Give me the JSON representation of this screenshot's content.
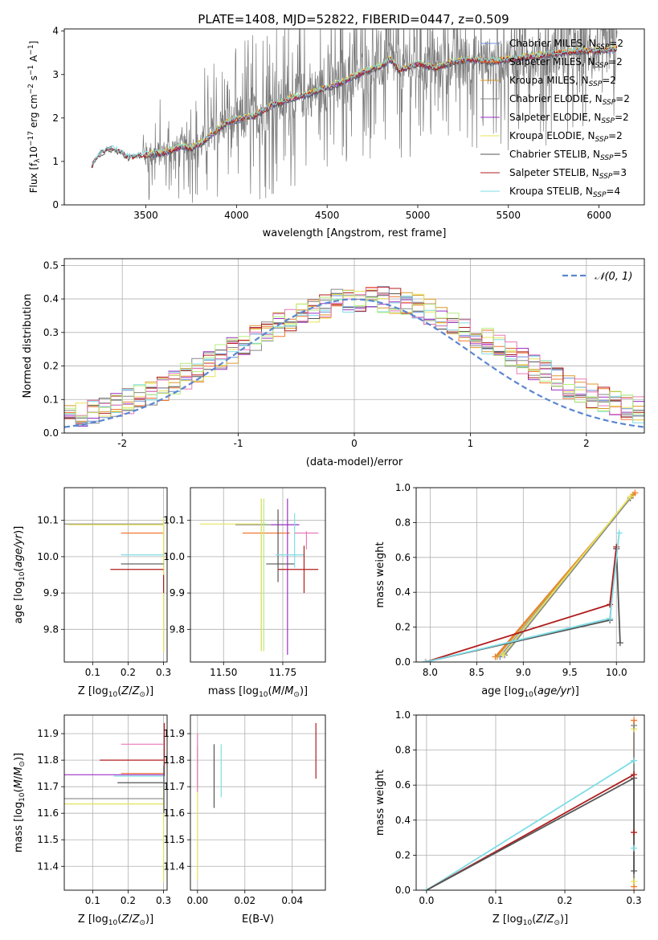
{
  "figure": {
    "title": "PLATE=1408, MJD=52822, FIBERID=0447, z=0.509"
  },
  "colors": {
    "Chabrier MILES": "#6b8dd6",
    "Salpeter MILES": "#f0762e",
    "Kroupa MILES": "#d99a2b",
    "Chabrier ELODIE": "#888888",
    "Salpeter ELODIE": "#9b30c4",
    "Kroupa ELODIE": "#e6e35a",
    "Chabrier STELIB": "#555555",
    "Salpeter STELIB": "#b01c1c",
    "Kroupa STELIB": "#7fdde6",
    "extra_pink": "#e879b8",
    "extra_green": "#b6ee7a",
    "data_gray": "#7a7a7a",
    "normal_curve": "#5b86d1",
    "grid": "#b0b0b0"
  },
  "legend_spectrum": [
    {
      "name": "Chabrier MILES",
      "base": "N",
      "sub": "SSP",
      "val": "=2"
    },
    {
      "name": "Salpeter MILES",
      "base": "N",
      "sub": "SSP",
      "val": "=2"
    },
    {
      "name": "Kroupa MILES",
      "base": "N",
      "sub": "SSP",
      "val": "=2"
    },
    {
      "name": "Chabrier ELODIE",
      "base": "N",
      "sub": "SSP",
      "val": "=2"
    },
    {
      "name": "Salpeter ELODIE",
      "base": "N",
      "sub": "SSP",
      "val": "=2"
    },
    {
      "name": "Kroupa ELODIE",
      "base": "N",
      "sub": "SSP",
      "val": "=2"
    },
    {
      "name": "Chabrier STELIB",
      "base": "N",
      "sub": "SSP",
      "val": "=5"
    },
    {
      "name": "Salpeter STELIB",
      "base": "N",
      "sub": "SSP",
      "val": "=3"
    },
    {
      "name": "Kroupa STELIB",
      "base": "N",
      "sub": "SSP",
      "val": "=4"
    }
  ],
  "chart_data": [
    {
      "id": "spectrum",
      "type": "line",
      "title": "PLATE=1408, MJD=52822, FIBERID=0447, z=0.509",
      "xlabel": "wavelength [Angstrom, rest frame]",
      "ylabel": "Flux [f_λ 10^-17 erg cm^-2 s^-1 A^-1]",
      "xlim": [
        3050,
        6250
      ],
      "ylim": [
        0,
        4.05
      ],
      "xticks": [
        3500,
        4000,
        4500,
        5000,
        5500,
        6000
      ],
      "yticks": [
        0,
        1,
        2,
        3,
        4
      ],
      "grid": false,
      "legend_position": "top-right",
      "model_continuum": {
        "x": [
          3200,
          3250,
          3300,
          3350,
          3400,
          3500,
          3600,
          3700,
          3750,
          3800,
          3900,
          3950,
          4000,
          4100,
          4200,
          4300,
          4400,
          4500,
          4600,
          4700,
          4800,
          4850,
          4900,
          5000,
          5100,
          5200,
          5300,
          5400,
          5500,
          5600,
          5700,
          5800,
          5900,
          6000,
          6100
        ],
        "y": [
          0.9,
          1.2,
          1.3,
          1.25,
          1.1,
          1.15,
          1.2,
          1.35,
          1.3,
          1.4,
          1.75,
          1.9,
          1.95,
          2.05,
          2.3,
          2.45,
          2.55,
          2.7,
          2.85,
          3.05,
          3.2,
          3.35,
          3.1,
          3.25,
          3.15,
          3.3,
          3.35,
          3.3,
          3.35,
          3.4,
          3.45,
          3.5,
          3.55,
          3.55,
          3.6
        ]
      }
    },
    {
      "id": "residual-histogram",
      "type": "line",
      "xlabel": "(data-model)/error",
      "ylabel": "Normed distribution",
      "xlim": [
        -2.5,
        2.5
      ],
      "ylim": [
        0,
        0.52
      ],
      "xticks": [
        -2,
        -1,
        0,
        1,
        2
      ],
      "yticks": [
        0.0,
        0.1,
        0.2,
        0.3,
        0.4,
        0.5
      ],
      "grid": true,
      "legend_position": "top-right",
      "legend": [
        {
          "label": "N(0, 1)",
          "style": "dashed"
        }
      ],
      "bins": 50
    },
    {
      "id": "age-vs-Z",
      "type": "scatter",
      "xlabel": "Z [log10(Z/Z⊙)]",
      "ylabel": "age [log10(age/yr)]",
      "xlim": [
        0.02,
        0.31
      ],
      "ylim": [
        9.71,
        10.19
      ],
      "xticks": [
        0.1,
        0.2,
        0.3
      ],
      "yticks": [
        9.8,
        9.9,
        10.0,
        10.1
      ],
      "grid": true,
      "points": [
        {
          "model": "Salpeter MILES",
          "x": 0.3,
          "xerr": [
            0.12,
            0.0
          ],
          "y": 10.065,
          "yerr": [
            0.0,
            0.0
          ]
        },
        {
          "model": "Chabrier ELODIE",
          "x": 0.3,
          "xerr": [
            0.28,
            0.0
          ],
          "y": 10.09,
          "yerr": [
            0.35,
            0.02
          ]
        },
        {
          "model": "Kroupa ELODIE",
          "x": 0.3,
          "xerr": [
            0.27,
            0.0
          ],
          "y": 10.088,
          "yerr": [
            0.35,
            0.02
          ]
        },
        {
          "model": "Kroupa STELIB",
          "x": 0.3,
          "xerr": [
            0.12,
            0.0
          ],
          "y": 10.005,
          "yerr": [
            0.0,
            0.0
          ]
        },
        {
          "model": "Chabrier STELIB",
          "x": 0.3,
          "xerr": [
            0.12,
            0.0
          ],
          "y": 9.98,
          "yerr": [
            0.0,
            0.0
          ]
        },
        {
          "model": "Salpeter STELIB",
          "x": 0.3,
          "xerr": [
            0.15,
            0.0
          ],
          "y": 9.965,
          "yerr": [
            0.0,
            0.0
          ]
        }
      ]
    },
    {
      "id": "age-vs-mass",
      "type": "scatter",
      "xlabel": "mass [log10(M/M⊙)]",
      "ylabel": "",
      "xlim": [
        11.36,
        11.93
      ],
      "ylim": [
        9.71,
        10.19
      ],
      "xticks": [
        11.5,
        11.75
      ],
      "yticks": [
        9.8,
        9.9,
        10.0,
        10.1
      ],
      "grid": true
    },
    {
      "id": "weight-vs-age",
      "type": "line",
      "xlabel": "age [log10(age/yr)]",
      "ylabel": "mass weight",
      "xlim": [
        7.85,
        10.3
      ],
      "ylim": [
        0,
        1.0
      ],
      "xticks": [
        8.0,
        8.5,
        9.0,
        9.5,
        10.0
      ],
      "yticks": [
        0.0,
        0.2,
        0.4,
        0.6,
        0.8,
        1.0
      ],
      "grid": true,
      "series": [
        {
          "model": "Chabrier MILES",
          "x": [
            8.75,
            10.15
          ],
          "y": [
            0.03,
            0.94
          ]
        },
        {
          "model": "Salpeter MILES",
          "x": [
            8.7,
            10.2
          ],
          "y": [
            0.03,
            0.97
          ]
        },
        {
          "model": "Kroupa MILES",
          "x": [
            8.72,
            10.18
          ],
          "y": [
            0.03,
            0.96
          ]
        },
        {
          "model": "Chabrier ELODIE",
          "x": [
            8.8,
            10.15
          ],
          "y": [
            0.04,
            0.94
          ]
        },
        {
          "model": "Kroupa ELODIE",
          "x": [
            8.78,
            10.15
          ],
          "y": [
            0.04,
            0.95
          ]
        },
        {
          "model": "Chabrier STELIB",
          "x": [
            7.95,
            9.93,
            10.0,
            10.04
          ],
          "y": [
            0.0,
            0.24,
            0.65,
            0.11
          ]
        },
        {
          "model": "Salpeter STELIB",
          "x": [
            7.95,
            9.93,
            10.0
          ],
          "y": [
            0.0,
            0.33,
            0.66
          ]
        },
        {
          "model": "Kroupa STELIB",
          "x": [
            7.95,
            9.93,
            10.03
          ],
          "y": [
            0.0,
            0.25,
            0.74
          ]
        }
      ]
    },
    {
      "id": "mass-vs-Z",
      "type": "scatter",
      "xlabel": "Z [log10(Z/Z⊙)]",
      "ylabel": "mass [log10(M/M⊙)]",
      "xlim": [
        0.02,
        0.31
      ],
      "ylim": [
        11.31,
        11.97
      ],
      "xticks": [
        0.1,
        0.2,
        0.3
      ],
      "yticks": [
        11.4,
        11.5,
        11.6,
        11.7,
        11.8,
        11.9
      ],
      "grid": true
    },
    {
      "id": "mass-vs-ebv",
      "type": "scatter",
      "xlabel": "E(B-V)",
      "ylabel": "",
      "xlim": [
        -0.003,
        0.054
      ],
      "ylim": [
        11.31,
        11.97
      ],
      "xticks": [
        0.0,
        0.02,
        0.04
      ],
      "yticks": [
        11.4,
        11.5,
        11.6,
        11.7,
        11.8,
        11.9
      ],
      "grid": true,
      "points": [
        {
          "model": "Salpeter ELODIE",
          "x": 0.0,
          "y": 11.76,
          "yerr": [
            0.06,
            0.09
          ]
        },
        {
          "model": "Kroupa ELODIE",
          "x": 0.0,
          "y": 11.55,
          "yerr": [
            0.2,
            0.3
          ]
        },
        {
          "model": "Chabrier STELIB",
          "x": 0.007,
          "y": 11.74,
          "yerr": [
            0.12,
            0.12
          ]
        },
        {
          "model": "Kroupa STELIB",
          "x": 0.01,
          "y": 11.76,
          "yerr": [
            0.1,
            0.1
          ]
        },
        {
          "model": "Salpeter STELIB",
          "x": 0.05,
          "y": 11.84,
          "yerr": [
            0.11,
            0.1
          ]
        }
      ]
    },
    {
      "id": "weight-vs-Z",
      "type": "line",
      "xlabel": "Z [log10(Z/Z⊙)]",
      "ylabel": "mass weight",
      "xlim": [
        -0.015,
        0.315
      ],
      "ylim": [
        0,
        1.0
      ],
      "xticks": [
        0.0,
        0.1,
        0.2,
        0.3
      ],
      "yticks": [
        0.0,
        0.2,
        0.4,
        0.6,
        0.8,
        1.0
      ],
      "grid": true,
      "series": [
        {
          "model": "Kroupa STELIB",
          "x": [
            0.0,
            0.3
          ],
          "y": [
            0.0,
            0.74
          ]
        },
        {
          "model": "Salpeter STELIB",
          "x": [
            0.0,
            0.3
          ],
          "y": [
            0.0,
            0.66
          ]
        },
        {
          "model": "Chabrier STELIB",
          "x": [
            0.0,
            0.3
          ],
          "y": [
            0.0,
            0.64
          ]
        }
      ]
    }
  ]
}
